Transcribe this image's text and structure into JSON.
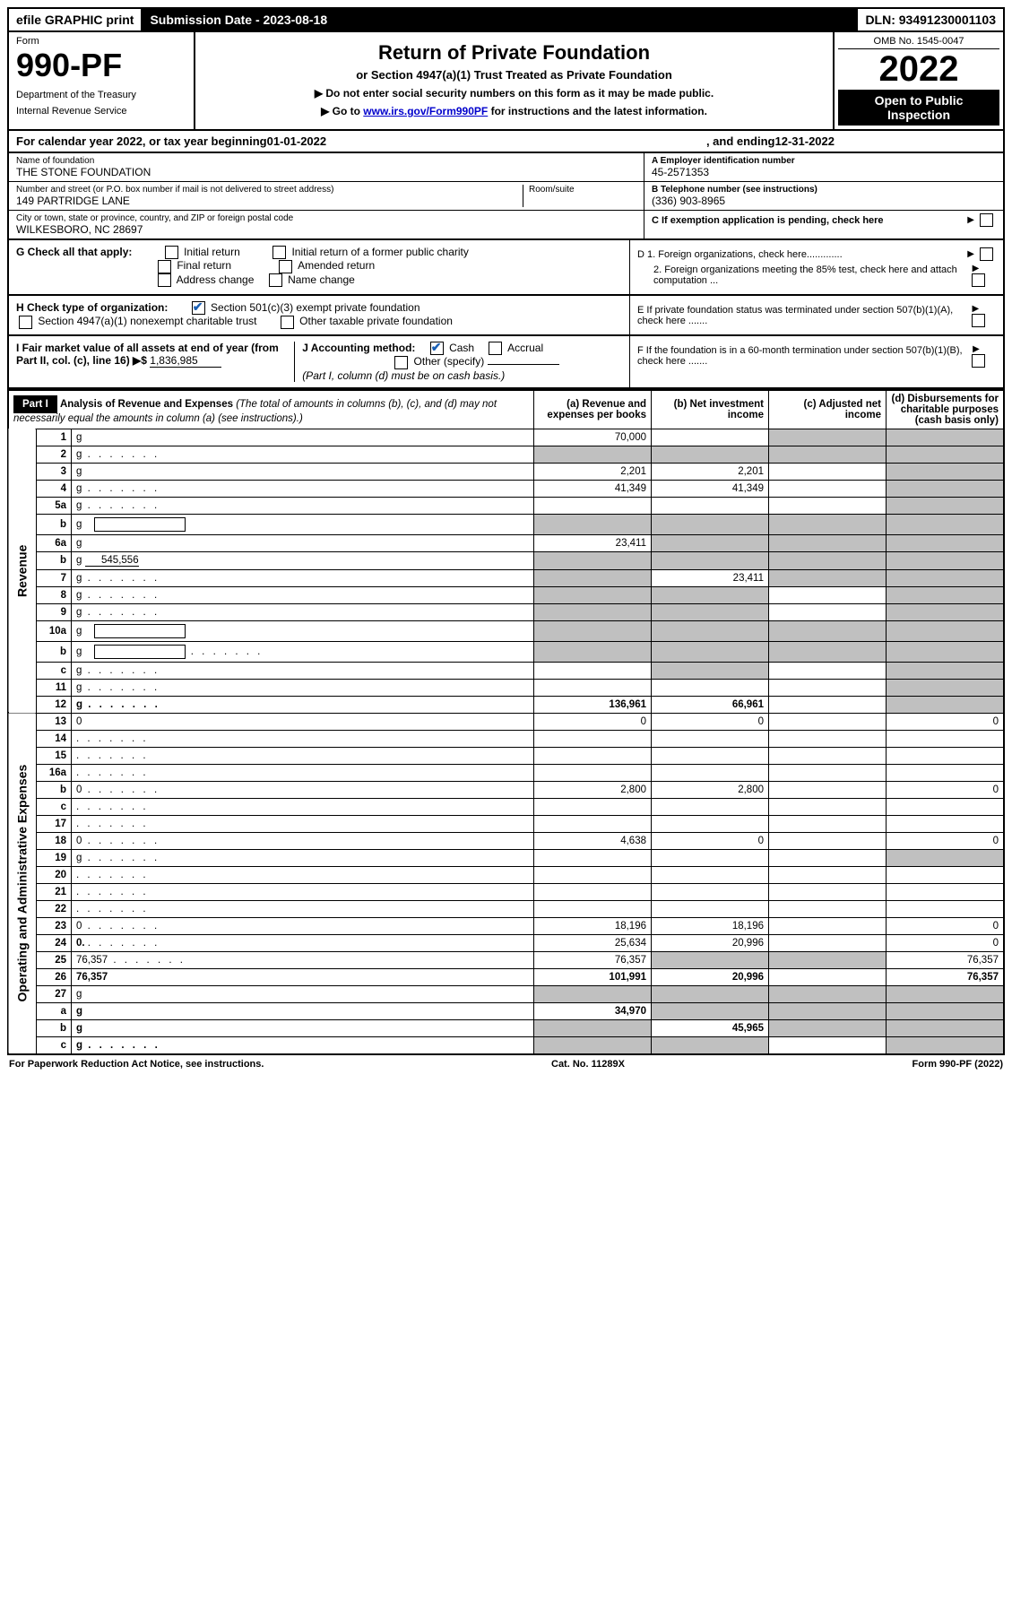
{
  "top": {
    "efile": "efile GRAPHIC print",
    "submission": "Submission Date - 2023-08-18",
    "dln": "DLN: 93491230001103"
  },
  "header": {
    "form_label": "Form",
    "form_number": "990-PF",
    "dept1": "Department of the Treasury",
    "dept2": "Internal Revenue Service",
    "title": "Return of Private Foundation",
    "subtitle": "or Section 4947(a)(1) Trust Treated as Private Foundation",
    "instr1": "▶ Do not enter social security numbers on this form as it may be made public.",
    "instr2_pre": "▶ Go to ",
    "instr2_link": "www.irs.gov/Form990PF",
    "instr2_post": " for instructions and the latest information.",
    "omb": "OMB No. 1545-0047",
    "year": "2022",
    "open": "Open to Public Inspection"
  },
  "calyear": {
    "pre": "For calendar year 2022, or tax year beginning ",
    "begin": "01-01-2022",
    "mid": " , and ending ",
    "end": "12-31-2022"
  },
  "id": {
    "name_label": "Name of foundation",
    "name": "THE STONE FOUNDATION",
    "addr_label": "Number and street (or P.O. box number if mail is not delivered to street address)",
    "addr": "149 PARTRIDGE LANE",
    "room_label": "Room/suite",
    "city_label": "City or town, state or province, country, and ZIP or foreign postal code",
    "city": "WILKESBORO, NC  28697",
    "a_label": "A Employer identification number",
    "a_val": "45-2571353",
    "b_label": "B Telephone number (see instructions)",
    "b_val": "(336) 903-8965",
    "c_label": "C If exemption application is pending, check here"
  },
  "checks": {
    "g_label": "G Check all that apply:",
    "g_opts": [
      "Initial return",
      "Initial return of a former public charity",
      "Final return",
      "Amended return",
      "Address change",
      "Name change"
    ],
    "h_label": "H Check type of organization:",
    "h1": "Section 501(c)(3) exempt private foundation",
    "h2": "Section 4947(a)(1) nonexempt charitable trust",
    "h3": "Other taxable private foundation",
    "i_label": "I Fair market value of all assets at end of year (from Part II, col. (c), line 16) ▶$",
    "i_val": "1,836,985",
    "j_label": "J Accounting method:",
    "j_cash": "Cash",
    "j_accrual": "Accrual",
    "j_other": "Other (specify)",
    "j_note": "(Part I, column (d) must be on cash basis.)",
    "d1": "D 1. Foreign organizations, check here.............",
    "d2": "2. Foreign organizations meeting the 85% test, check here and attach computation ...",
    "e": "E  If private foundation status was terminated under section 507(b)(1)(A), check here .......",
    "f": "F  If the foundation is in a 60-month termination under section 507(b)(1)(B), check here .......",
    "arrow_cbox": "▶"
  },
  "part1": {
    "label": "Part I",
    "title": "Analysis of Revenue and Expenses",
    "title_note": "(The total of amounts in columns (b), (c), and (d) may not necessarily equal the amounts in column (a) (see instructions).)",
    "col_a": "(a)  Revenue and expenses per books",
    "col_b": "(b)  Net investment income",
    "col_c": "(c)  Adjusted net income",
    "col_d": "(d)  Disbursements for charitable purposes (cash basis only)",
    "side_rev": "Revenue",
    "side_exp": "Operating and Administrative Expenses"
  },
  "rows": [
    {
      "n": "1",
      "d": "g",
      "a": "70,000",
      "b": "",
      "c": "g"
    },
    {
      "n": "2",
      "d": "g",
      "a": "g",
      "b": "g",
      "c": "g",
      "dots": true
    },
    {
      "n": "3",
      "d": "g",
      "a": "2,201",
      "b": "2,201",
      "c": ""
    },
    {
      "n": "4",
      "d": "g",
      "a": "41,349",
      "b": "41,349",
      "c": "",
      "dots": true
    },
    {
      "n": "5a",
      "d": "g",
      "a": "",
      "b": "",
      "c": "",
      "dots": true
    },
    {
      "n": "b",
      "d": "g",
      "a": "g",
      "b": "g",
      "c": "g",
      "inline_blank": true
    },
    {
      "n": "6a",
      "d": "g",
      "a": "23,411",
      "b": "g",
      "c": "g"
    },
    {
      "n": "b",
      "d": "g",
      "a": "g",
      "b": "g",
      "c": "g",
      "inline_val": "545,556"
    },
    {
      "n": "7",
      "d": "g",
      "a": "g",
      "b": "23,411",
      "c": "g",
      "dots": true
    },
    {
      "n": "8",
      "d": "g",
      "a": "g",
      "b": "g",
      "c": "",
      "dots": true
    },
    {
      "n": "9",
      "d": "g",
      "a": "g",
      "b": "g",
      "c": "",
      "dots": true
    },
    {
      "n": "10a",
      "d": "g",
      "a": "g",
      "b": "g",
      "c": "g",
      "inline_blank": true
    },
    {
      "n": "b",
      "d": "g",
      "a": "g",
      "b": "g",
      "c": "g",
      "inline_blank": true,
      "dots": true
    },
    {
      "n": "c",
      "d": "g",
      "a": "",
      "b": "g",
      "c": "",
      "dots": true
    },
    {
      "n": "11",
      "d": "g",
      "a": "",
      "b": "",
      "c": "",
      "dots": true
    },
    {
      "n": "12",
      "d": "g",
      "a": "136,961",
      "b": "66,961",
      "c": "",
      "bold": true,
      "dots": true
    },
    {
      "n": "13",
      "d": "0",
      "a": "0",
      "b": "0",
      "c": ""
    },
    {
      "n": "14",
      "d": "",
      "a": "",
      "b": "",
      "c": "",
      "dots": true
    },
    {
      "n": "15",
      "d": "",
      "a": "",
      "b": "",
      "c": "",
      "dots": true
    },
    {
      "n": "16a",
      "d": "",
      "a": "",
      "b": "",
      "c": "",
      "dots": true
    },
    {
      "n": "b",
      "d": "0",
      "a": "2,800",
      "b": "2,800",
      "c": "",
      "dots": true
    },
    {
      "n": "c",
      "d": "",
      "a": "",
      "b": "",
      "c": "",
      "dots": true
    },
    {
      "n": "17",
      "d": "",
      "a": "",
      "b": "",
      "c": "",
      "dots": true
    },
    {
      "n": "18",
      "d": "0",
      "a": "4,638",
      "b": "0",
      "c": "",
      "dots": true
    },
    {
      "n": "19",
      "d": "g",
      "a": "",
      "b": "",
      "c": "",
      "dots": true
    },
    {
      "n": "20",
      "d": "",
      "a": "",
      "b": "",
      "c": "",
      "dots": true
    },
    {
      "n": "21",
      "d": "",
      "a": "",
      "b": "",
      "c": "",
      "dots": true
    },
    {
      "n": "22",
      "d": "",
      "a": "",
      "b": "",
      "c": "",
      "dots": true
    },
    {
      "n": "23",
      "d": "0",
      "a": "18,196",
      "b": "18,196",
      "c": "",
      "dots": true
    },
    {
      "n": "24",
      "d": "0",
      "a": "25,634",
      "b": "20,996",
      "c": "",
      "bold_label": true,
      "dots": true
    },
    {
      "n": "25",
      "d": "76,357",
      "a": "76,357",
      "b": "g",
      "c": "g",
      "dots": true
    },
    {
      "n": "26",
      "d": "76,357",
      "a": "101,991",
      "b": "20,996",
      "c": "",
      "bold": true
    },
    {
      "n": "27",
      "d": "g",
      "a": "g",
      "b": "g",
      "c": "g"
    },
    {
      "n": "a",
      "d": "g",
      "a": "34,970",
      "b": "g",
      "c": "g",
      "bold": true
    },
    {
      "n": "b",
      "d": "g",
      "a": "g",
      "b": "45,965",
      "c": "g",
      "bold": true
    },
    {
      "n": "c",
      "d": "g",
      "a": "g",
      "b": "g",
      "c": "",
      "bold": true,
      "dots": true
    }
  ],
  "footer": {
    "left": "For Paperwork Reduction Act Notice, see instructions.",
    "mid": "Cat. No. 11289X",
    "right": "Form 990-PF (2022)"
  }
}
